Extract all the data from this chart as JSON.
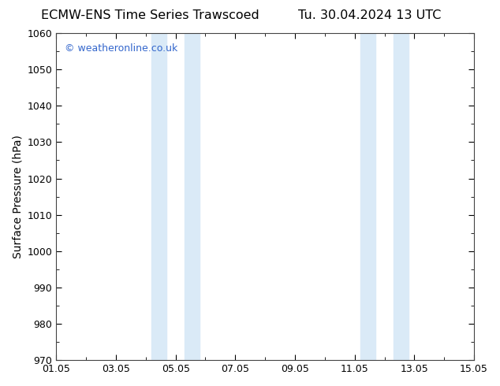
{
  "title_left": "ECMW-ENS Time Series Trawscoed",
  "title_right": "Tu. 30.04.2024 13 UTC",
  "ylabel": "Surface Pressure (hPa)",
  "ylim": [
    970,
    1060
  ],
  "ytick_interval": 10,
  "x_start": 1,
  "x_end": 15,
  "xtick_positions": [
    1,
    3,
    5,
    7,
    9,
    11,
    13,
    15
  ],
  "xtick_labels": [
    "01.05",
    "03.05",
    "05.05",
    "07.05",
    "09.05",
    "11.05",
    "13.05",
    "15.05"
  ],
  "shaded_bands": [
    {
      "x_start": 4.2,
      "x_end": 4.7
    },
    {
      "x_start": 5.3,
      "x_end": 5.8
    },
    {
      "x_start": 11.2,
      "x_end": 11.7
    },
    {
      "x_start": 12.3,
      "x_end": 12.8
    }
  ],
  "shade_color": "#daeaf7",
  "background_color": "#ffffff",
  "plot_bg_color": "#ffffff",
  "watermark_text": "© weatheronline.co.uk",
  "watermark_color": "#3366cc",
  "watermark_fontsize": 9,
  "title_fontsize": 11.5,
  "axis_label_fontsize": 10,
  "tick_label_fontsize": 9
}
